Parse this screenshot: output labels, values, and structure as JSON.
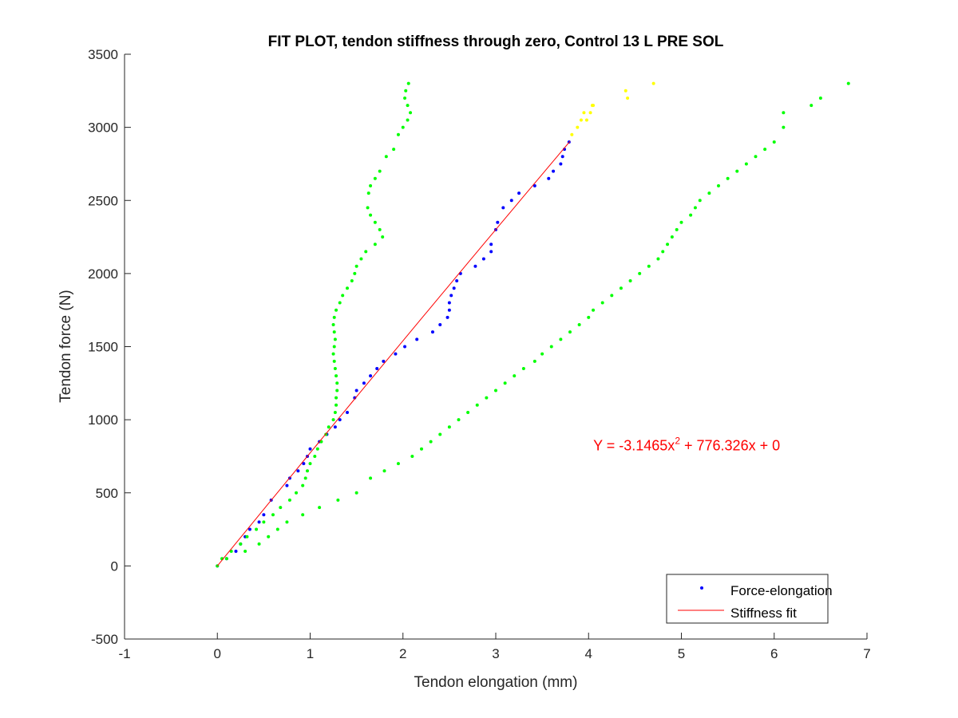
{
  "chart_data": {
    "type": "scatter",
    "title": "FIT PLOT, tendon stiffness through zero, Control 13 L PRE SOL",
    "xlabel": "Tendon elongation (mm)",
    "ylabel": "Tendon force (N)",
    "xlim": [
      -1,
      7
    ],
    "ylim": [
      -500,
      3500
    ],
    "x_ticks": [
      -1,
      0,
      1,
      2,
      3,
      4,
      5,
      6,
      7
    ],
    "x_tick_labels": [
      "-1",
      "0",
      "1",
      "2",
      "3",
      "4",
      "5",
      "6",
      "7"
    ],
    "y_ticks": [
      -500,
      0,
      500,
      1000,
      1500,
      2000,
      2500,
      3000,
      3500
    ],
    "y_tick_labels": [
      "-500",
      "0",
      "500",
      "1000",
      "1500",
      "2000",
      "2500",
      "3000",
      "3500"
    ],
    "grid": false,
    "legend_placement": "bottom-right",
    "equation": {
      "prefix": "Y = -3.1465x",
      "superscript": "2",
      "suffix": " + 776.326x + 0",
      "color": "#ff0000",
      "anchor": [
        4.05,
        790
      ]
    },
    "fit": {
      "name": "Stiffness fit",
      "color": "#ff0000",
      "a": -3.1465,
      "b": 776.326,
      "c": 0,
      "x_range": [
        0,
        3.8
      ]
    },
    "series": [
      {
        "name": "Force-elongation",
        "color": "#0000ff",
        "x": [
          0,
          0.1,
          0.2,
          0.25,
          0.3,
          0.35,
          0.45,
          0.5,
          0.58,
          0.75,
          0.78,
          0.87,
          0.93,
          0.97,
          1.0,
          1.1,
          1.18,
          1.27,
          1.32,
          1.4,
          1.48,
          1.5,
          1.58,
          1.65,
          1.72,
          1.79,
          1.92,
          2.02,
          2.15,
          2.32,
          2.4,
          2.48,
          2.5,
          2.5,
          2.52,
          2.55,
          2.58,
          2.62,
          2.78,
          2.87,
          2.95,
          2.95,
          3.0,
          3.02,
          3.08,
          3.17,
          3.25,
          3.42,
          3.57,
          3.62,
          3.7,
          3.72,
          3.74,
          3.79
        ],
        "y": [
          0,
          50,
          100,
          150,
          200,
          250,
          300,
          350,
          450,
          550,
          600,
          650,
          700,
          750,
          800,
          850,
          900,
          950,
          1000,
          1050,
          1150,
          1200,
          1250,
          1300,
          1350,
          1400,
          1450,
          1500,
          1550,
          1600,
          1650,
          1700,
          1750,
          1800,
          1850,
          1900,
          1950,
          2000,
          2050,
          2100,
          2150,
          2200,
          2300,
          2350,
          2450,
          2500,
          2550,
          2600,
          2650,
          2700,
          2750,
          2800,
          2850,
          2900
        ],
        "marker_size": 2
      },
      {
        "name": "",
        "color": "#ffff00",
        "x": [
          3.82,
          3.88,
          3.92,
          3.95,
          3.98,
          4.02,
          4.04,
          4.05,
          4.42,
          4.4,
          4.7
        ],
        "y": [
          2950,
          3000,
          3050,
          3100,
          3050,
          3100,
          3150,
          3150,
          3200,
          3250,
          3300
        ],
        "marker_size": 2
      },
      {
        "name": "",
        "color": "#00ff00",
        "x": [
          0,
          0.05,
          0.15,
          0.25,
          0.32,
          0.42,
          0.5,
          0.6,
          0.68,
          0.78,
          0.85,
          0.92,
          0.95,
          0.97,
          1.0,
          1.05,
          1.08,
          1.12,
          1.17,
          1.2,
          1.25,
          1.27,
          1.28,
          1.28,
          1.29,
          1.29,
          1.28,
          1.27,
          1.26,
          1.25,
          1.26,
          1.27,
          1.26,
          1.25,
          1.26,
          1.28,
          1.32,
          1.35,
          1.4,
          1.45,
          1.48,
          1.5,
          1.55,
          1.6,
          1.7,
          1.78,
          1.75,
          1.7,
          1.65,
          1.62,
          1.63,
          1.65,
          1.7,
          1.75,
          1.82,
          1.9,
          1.95,
          2.0,
          2.05,
          2.08,
          2.05,
          2.02,
          2.03,
          2.06
        ],
        "y": [
          0,
          50,
          100,
          150,
          200,
          250,
          300,
          350,
          400,
          450,
          500,
          550,
          600,
          650,
          700,
          750,
          800,
          850,
          900,
          950,
          1000,
          1050,
          1100,
          1150,
          1200,
          1250,
          1300,
          1350,
          1400,
          1450,
          1500,
          1550,
          1600,
          1650,
          1700,
          1750,
          1800,
          1850,
          1900,
          1950,
          2000,
          2050,
          2100,
          2150,
          2200,
          2250,
          2300,
          2350,
          2400,
          2450,
          2550,
          2600,
          2650,
          2700,
          2800,
          2850,
          2950,
          3000,
          3050,
          3100,
          3150,
          3200,
          3250,
          3300
        ],
        "marker_size": 2
      },
      {
        "name": "",
        "color": "#00ff00",
        "x": [
          0.1,
          0.3,
          0.45,
          0.55,
          0.65,
          0.75,
          0.92,
          1.1,
          1.3,
          1.5,
          1.65,
          1.8,
          1.95,
          2.1,
          2.2,
          2.3,
          2.4,
          2.5,
          2.6,
          2.7,
          2.8,
          2.9,
          3.0,
          3.1,
          3.2,
          3.3,
          3.42,
          3.5,
          3.6,
          3.7,
          3.8,
          3.9,
          4.0,
          4.05,
          4.15,
          4.25,
          4.35,
          4.45,
          4.55,
          4.65,
          4.75,
          4.8,
          4.85,
          4.9,
          4.95,
          5.0,
          5.1,
          5.15,
          5.2,
          5.3,
          5.4,
          5.5,
          5.6,
          5.7,
          5.8,
          5.9,
          6.0,
          6.1,
          6.1,
          6.4,
          6.5,
          6.8
        ],
        "y": [
          50,
          100,
          150,
          200,
          250,
          300,
          350,
          400,
          450,
          500,
          600,
          650,
          700,
          750,
          800,
          850,
          900,
          950,
          1000,
          1050,
          1100,
          1150,
          1200,
          1250,
          1300,
          1350,
          1400,
          1450,
          1500,
          1550,
          1600,
          1650,
          1700,
          1750,
          1800,
          1850,
          1900,
          1950,
          2000,
          2050,
          2100,
          2150,
          2200,
          2250,
          2300,
          2350,
          2400,
          2450,
          2500,
          2550,
          2600,
          2650,
          2700,
          2750,
          2800,
          2850,
          2900,
          3000,
          3100,
          3150,
          3200,
          3300
        ],
        "marker_size": 2
      }
    ],
    "legend": [
      {
        "label": "Force-elongation",
        "kind": "marker",
        "color": "#0000ff"
      },
      {
        "label": "Stiffness fit",
        "kind": "line",
        "color": "#ff0000"
      }
    ]
  }
}
